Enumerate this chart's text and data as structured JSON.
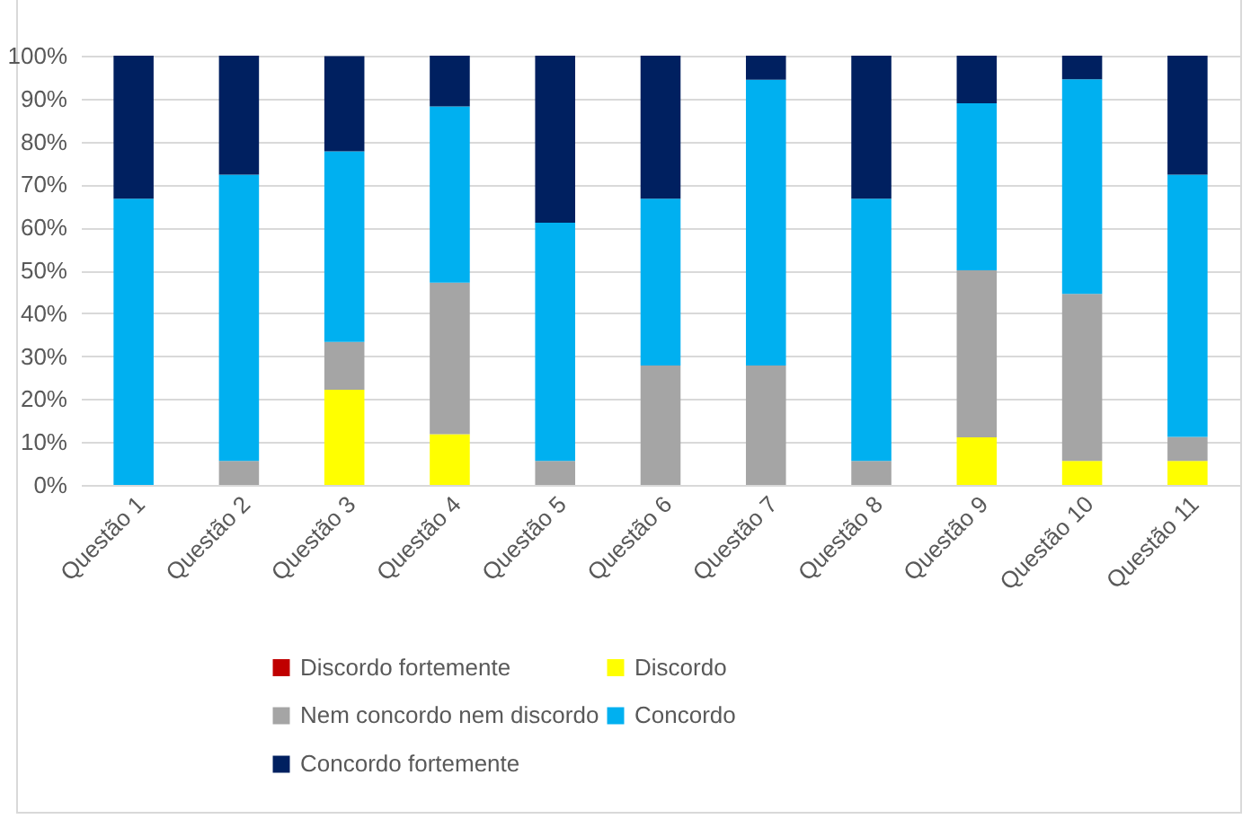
{
  "chart_data": {
    "type": "bar",
    "stacked": true,
    "categories": [
      "Questão 1",
      "Questão 2",
      "Questão 3",
      "Questão 4",
      "Questão 5",
      "Questão 6",
      "Questão 7",
      "Questão 8",
      "Questão 9",
      "Questão 10",
      "Questão 11"
    ],
    "series": [
      {
        "name": "Discordo fortemente",
        "color": "#c00000",
        "values": [
          0,
          0,
          0,
          0,
          0,
          0,
          0,
          0,
          0,
          0,
          0
        ]
      },
      {
        "name": "Discordo",
        "color": "#ffff00",
        "values": [
          0,
          0,
          22.2,
          11.8,
          0,
          0,
          0,
          0,
          11.1,
          5.6,
          5.6
        ]
      },
      {
        "name": "Nem concordo nem discordo",
        "color": "#a5a5a5",
        "values": [
          0,
          5.6,
          11.1,
          35.3,
          5.6,
          27.8,
          27.8,
          5.6,
          38.9,
          38.9,
          5.6
        ]
      },
      {
        "name": "Concordo",
        "color": "#00b0f0",
        "values": [
          66.7,
          66.7,
          44.4,
          41.1,
          55.5,
          38.9,
          66.6,
          61.1,
          38.9,
          50,
          61.1
        ]
      },
      {
        "name": "Concordo fortemente",
        "color": "#002060",
        "values": [
          33.3,
          27.7,
          22.2,
          11.8,
          38.9,
          33.3,
          5.6,
          33.3,
          11.1,
          5.5,
          27.7
        ]
      }
    ],
    "ylim": [
      0,
      100
    ],
    "yticks": [
      {
        "value": 0,
        "label": "0%"
      },
      {
        "value": 10,
        "label": "10%"
      },
      {
        "value": 20,
        "label": "20%"
      },
      {
        "value": 30,
        "label": "30%"
      },
      {
        "value": 40,
        "label": "40%"
      },
      {
        "value": 50,
        "label": "50%"
      },
      {
        "value": 60,
        "label": "60%"
      },
      {
        "value": 70,
        "label": "70%"
      },
      {
        "value": 80,
        "label": "80%"
      },
      {
        "value": 90,
        "label": "90%"
      },
      {
        "value": 100,
        "label": "100%"
      }
    ],
    "grid": "y",
    "legend": "bottom"
  }
}
